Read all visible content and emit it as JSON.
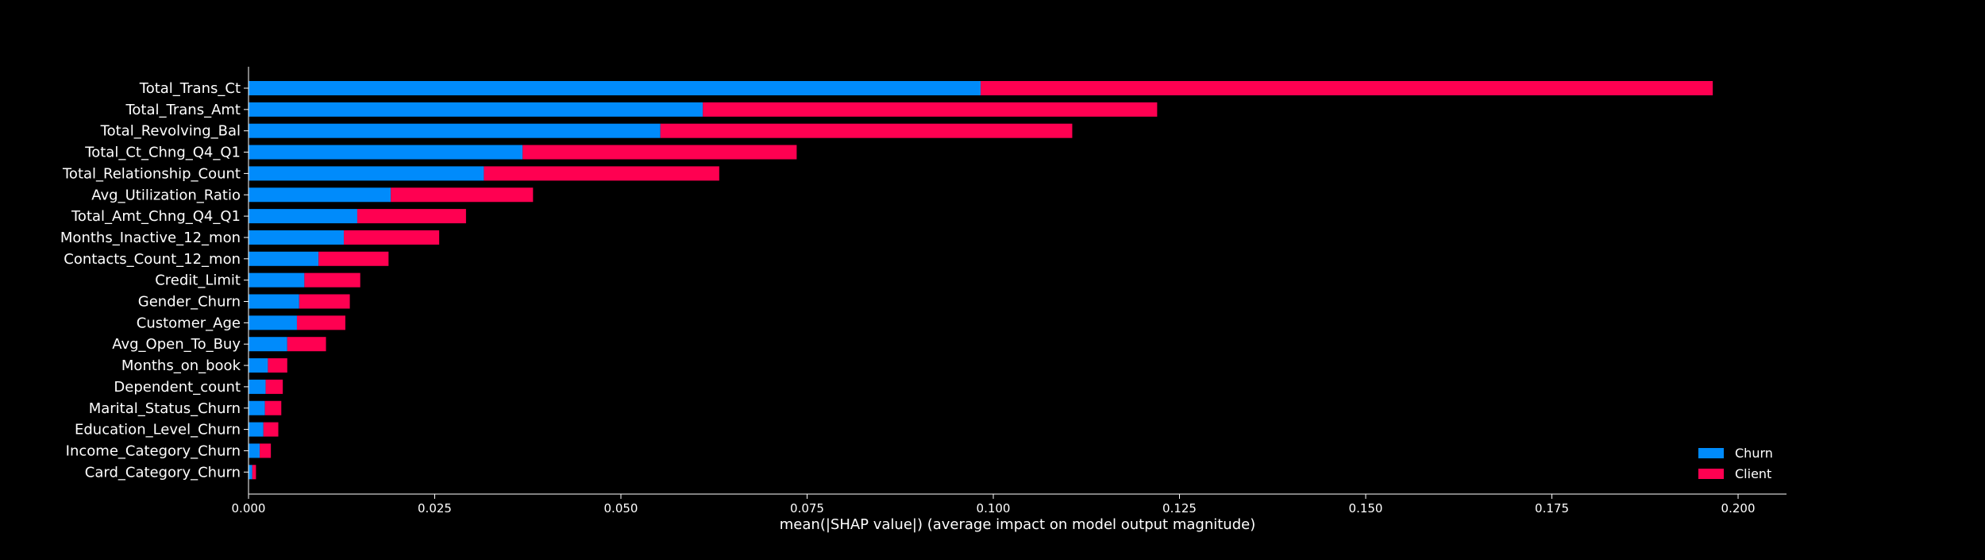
{
  "chart_data": {
    "type": "bar",
    "orientation": "horizontal",
    "stacked": true,
    "categories": [
      "Total_Trans_Ct",
      "Total_Trans_Amt",
      "Total_Revolving_Bal",
      "Total_Ct_Chng_Q4_Q1",
      "Total_Relationship_Count",
      "Avg_Utilization_Ratio",
      "Total_Amt_Chng_Q4_Q1",
      "Months_Inactive_12_mon",
      "Contacts_Count_12_mon",
      "Credit_Limit",
      "Gender_Churn",
      "Customer_Age",
      "Avg_Open_To_Buy",
      "Months_on_book",
      "Dependent_count",
      "Marital_Status_Churn",
      "Education_Level_Churn",
      "Income_Category_Churn",
      "Card_Category_Churn"
    ],
    "series": [
      {
        "name": "Churn",
        "color": "#008bfb",
        "values": [
          0.0983,
          0.061,
          0.0553,
          0.0368,
          0.0316,
          0.0191,
          0.0146,
          0.0128,
          0.0094,
          0.0075,
          0.0068,
          0.0065,
          0.0052,
          0.0026,
          0.0023,
          0.0022,
          0.002,
          0.0015,
          0.0005
        ]
      },
      {
        "name": "Client",
        "color": "#ff0051",
        "values": [
          0.0983,
          0.061,
          0.0553,
          0.0368,
          0.0316,
          0.0191,
          0.0146,
          0.0128,
          0.0094,
          0.0075,
          0.0068,
          0.0065,
          0.0052,
          0.0026,
          0.0023,
          0.0022,
          0.002,
          0.0015,
          0.0005
        ]
      }
    ],
    "xlabel": "mean(|SHAP value|) (average impact on model output magnitude)",
    "xticks": [
      0.0,
      0.025,
      0.05,
      0.075,
      0.1,
      0.125,
      0.15,
      0.175,
      0.2
    ],
    "xtick_labels": [
      "0.000",
      "0.025",
      "0.050",
      "0.075",
      "0.100",
      "0.125",
      "0.150",
      "0.175",
      "0.200"
    ],
    "xlim": [
      0,
      0.2065
    ],
    "grid": false,
    "legend_position": "lower-right",
    "background": "#000000",
    "text_color": "#ffffff"
  }
}
